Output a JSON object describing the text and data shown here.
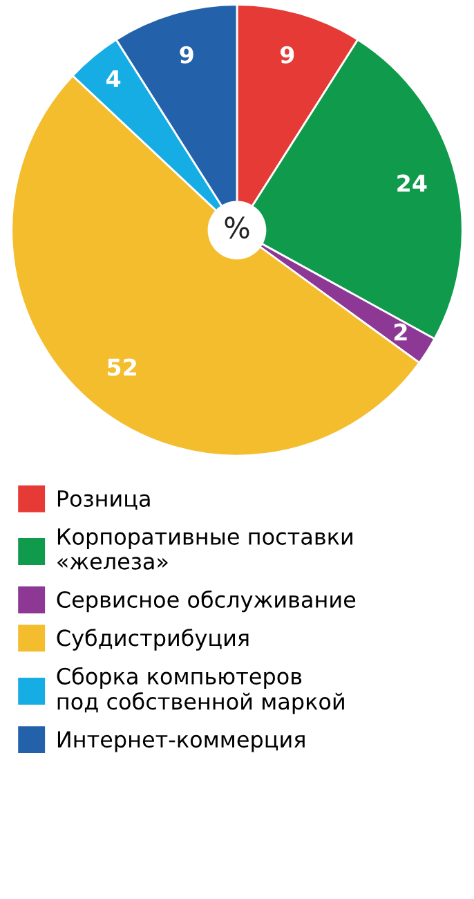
{
  "chart_data": {
    "type": "pie",
    "categories": [
      "Розница",
      "Корпоративные поставки\n«железа»",
      "Сервисное обслуживание",
      "Субдистрибуция",
      "Сборка компьютеров\nпод собственной маркой",
      "Интернет-коммерция"
    ],
    "values": [
      9,
      24,
      2,
      52,
      4,
      9
    ],
    "colors": [
      "#e63a36",
      "#0f9a4c",
      "#8e3896",
      "#f3bd2e",
      "#16ade4",
      "#2362ab"
    ],
    "data_labels": true,
    "legend": "bottom",
    "annotations": [
      "%"
    ]
  }
}
